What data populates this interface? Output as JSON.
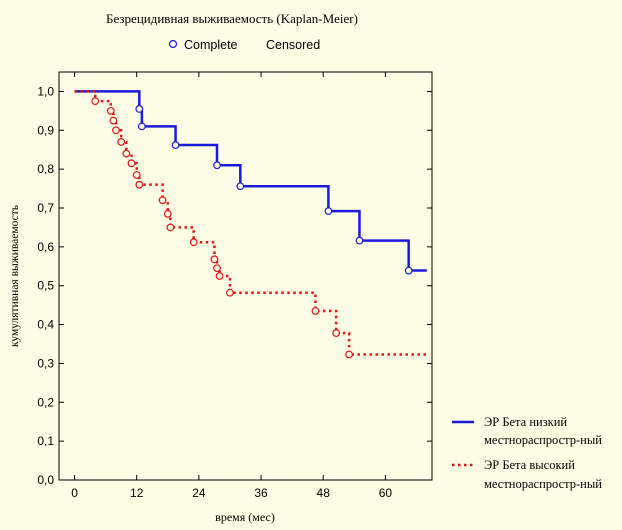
{
  "chart_data": {
    "type": "line",
    "title": "Безрецидивная выживаемость (Kaplan-Meier)",
    "marker_legend": {
      "complete": "Complete",
      "censored": "Censored"
    },
    "xlabel": "время (мес)",
    "ylabel": "кумулятивная выживаемость",
    "xlim": [
      -3,
      69
    ],
    "ylim": [
      0,
      1.05
    ],
    "xticks": [
      "0",
      "12",
      "24",
      "36",
      "48",
      "60"
    ],
    "yticks": [
      "0,0",
      "0,1",
      "0,2",
      "0,3",
      "0,4",
      "0,5",
      "0,6",
      "0,7",
      "0,8",
      "0,9",
      "1,0"
    ],
    "grid": false,
    "legend_position": "right",
    "series": [
      {
        "name": "ЭР Бета низкий местнораспростр-ный",
        "color": "#1a1adb",
        "line_style": "solid",
        "steps": [
          [
            0,
            1.0
          ],
          [
            12.5,
            0.955
          ],
          [
            13,
            0.91
          ],
          [
            19.5,
            0.862
          ],
          [
            27.5,
            0.81
          ],
          [
            32,
            0.756
          ],
          [
            49,
            0.692
          ],
          [
            55,
            0.616
          ],
          [
            64.5,
            0.539
          ],
          [
            68,
            0.539
          ]
        ],
        "markers": [
          [
            12.5,
            0.955
          ],
          [
            13,
            0.91
          ],
          [
            19.5,
            0.862
          ],
          [
            27.5,
            0.81
          ],
          [
            32,
            0.756
          ],
          [
            49,
            0.692
          ],
          [
            55,
            0.616
          ],
          [
            64.5,
            0.539
          ]
        ]
      },
      {
        "name": "ЭР Бета высокий местнораспростр-ный",
        "color": "#e01414",
        "line_style": "dotted",
        "steps": [
          [
            0,
            1.0
          ],
          [
            4,
            0.975
          ],
          [
            7,
            0.95
          ],
          [
            7.5,
            0.925
          ],
          [
            8,
            0.9
          ],
          [
            9,
            0.87
          ],
          [
            10,
            0.84
          ],
          [
            11,
            0.815
          ],
          [
            12,
            0.785
          ],
          [
            12.5,
            0.76
          ],
          [
            17,
            0.72
          ],
          [
            18,
            0.685
          ],
          [
            18.5,
            0.65
          ],
          [
            23,
            0.612
          ],
          [
            27,
            0.568
          ],
          [
            27.5,
            0.545
          ],
          [
            28,
            0.525
          ],
          [
            30,
            0.482
          ],
          [
            46.5,
            0.435
          ],
          [
            50.5,
            0.378
          ],
          [
            53,
            0.323
          ],
          [
            68,
            0.323
          ]
        ],
        "markers": [
          [
            4,
            0.975
          ],
          [
            7,
            0.95
          ],
          [
            7.5,
            0.925
          ],
          [
            8,
            0.9
          ],
          [
            9,
            0.87
          ],
          [
            10,
            0.84
          ],
          [
            11,
            0.815
          ],
          [
            12,
            0.785
          ],
          [
            12.5,
            0.76
          ],
          [
            17,
            0.72
          ],
          [
            18,
            0.685
          ],
          [
            18.5,
            0.65
          ],
          [
            23,
            0.612
          ],
          [
            27,
            0.568
          ],
          [
            27.5,
            0.545
          ],
          [
            28,
            0.525
          ],
          [
            30,
            0.482
          ],
          [
            46.5,
            0.435
          ],
          [
            50.5,
            0.378
          ],
          [
            53,
            0.323
          ]
        ]
      }
    ]
  }
}
